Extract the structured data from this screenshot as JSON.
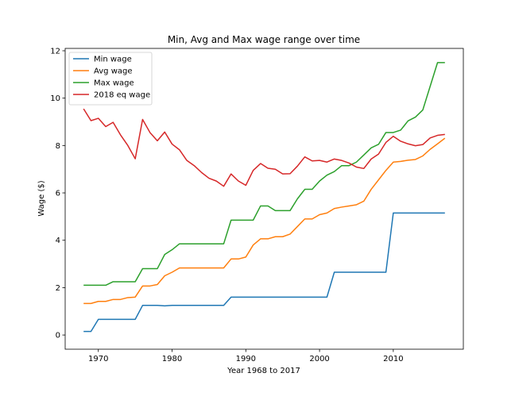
{
  "chart_data": {
    "type": "line",
    "title": "Min, Avg and Max wage range over time",
    "xlabel": "Year 1968 to 2017",
    "ylabel": "Wage ($)",
    "xlim": [
      1965.5,
      2019.5
    ],
    "ylim": [
      -0.6,
      12.1
    ],
    "xticks": [
      1970,
      1980,
      1990,
      2000,
      2010
    ],
    "yticks": [
      0,
      2,
      4,
      6,
      8,
      10,
      12
    ],
    "grid": false,
    "legend_position": "top-left",
    "x": [
      1968,
      1969,
      1970,
      1971,
      1972,
      1973,
      1974,
      1975,
      1976,
      1977,
      1978,
      1979,
      1980,
      1981,
      1982,
      1983,
      1984,
      1985,
      1986,
      1987,
      1988,
      1989,
      1990,
      1991,
      1992,
      1993,
      1994,
      1995,
      1996,
      1997,
      1998,
      1999,
      2000,
      2001,
      2002,
      2003,
      2004,
      2005,
      2006,
      2007,
      2008,
      2009,
      2010,
      2011,
      2012,
      2013,
      2014,
      2015,
      2016,
      2017
    ],
    "series": [
      {
        "name": "Min wage",
        "color": "#1f77b4",
        "values": [
          0.15,
          0.15,
          0.66,
          0.66,
          0.66,
          0.66,
          0.66,
          0.66,
          1.25,
          1.25,
          1.25,
          1.23,
          1.25,
          1.25,
          1.25,
          1.25,
          1.25,
          1.25,
          1.25,
          1.25,
          1.6,
          1.6,
          1.6,
          1.6,
          1.6,
          1.6,
          1.6,
          1.6,
          1.6,
          1.6,
          1.6,
          1.6,
          1.6,
          1.6,
          2.65,
          2.65,
          2.65,
          2.65,
          2.65,
          2.65,
          2.65,
          2.65,
          5.15,
          5.15,
          5.15,
          5.15,
          5.15,
          5.15,
          5.15,
          5.15
        ]
      },
      {
        "name": "Avg wage",
        "color": "#ff7f0e",
        "values": [
          1.33,
          1.33,
          1.42,
          1.42,
          1.5,
          1.5,
          1.58,
          1.6,
          2.07,
          2.07,
          2.13,
          2.5,
          2.65,
          2.83,
          2.83,
          2.83,
          2.83,
          2.83,
          2.83,
          2.83,
          3.21,
          3.21,
          3.29,
          3.8,
          4.06,
          4.06,
          4.15,
          4.15,
          4.26,
          4.58,
          4.9,
          4.9,
          5.08,
          5.15,
          5.34,
          5.4,
          5.45,
          5.5,
          5.65,
          6.15,
          6.55,
          6.95,
          7.3,
          7.33,
          7.38,
          7.41,
          7.56,
          7.84,
          8.07,
          8.31
        ]
      },
      {
        "name": "Max wage",
        "color": "#2ca02c",
        "values": [
          2.1,
          2.1,
          2.1,
          2.1,
          2.25,
          2.25,
          2.25,
          2.25,
          2.8,
          2.8,
          2.8,
          3.4,
          3.6,
          3.85,
          3.85,
          3.85,
          3.85,
          3.85,
          3.85,
          3.85,
          4.85,
          4.85,
          4.85,
          4.85,
          5.45,
          5.45,
          5.25,
          5.25,
          5.25,
          5.75,
          6.15,
          6.15,
          6.5,
          6.75,
          6.9,
          7.15,
          7.15,
          7.3,
          7.6,
          7.9,
          8.05,
          8.55,
          8.55,
          8.65,
          9.04,
          9.2,
          9.5,
          10.5,
          11.5,
          11.5
        ]
      },
      {
        "name": "2018 eq wage",
        "color": "#d62728",
        "values": [
          9.55,
          9.05,
          9.15,
          8.8,
          8.98,
          8.45,
          8.0,
          7.44,
          9.1,
          8.55,
          8.2,
          8.57,
          8.06,
          7.82,
          7.37,
          7.15,
          6.86,
          6.62,
          6.5,
          6.28,
          6.8,
          6.5,
          6.32,
          6.95,
          7.24,
          7.04,
          7.0,
          6.8,
          6.81,
          7.13,
          7.52,
          7.35,
          7.37,
          7.3,
          7.43,
          7.37,
          7.26,
          7.09,
          7.03,
          7.43,
          7.64,
          8.13,
          8.39,
          8.18,
          8.07,
          7.99,
          8.04,
          8.32,
          8.43,
          8.47
        ]
      }
    ]
  }
}
